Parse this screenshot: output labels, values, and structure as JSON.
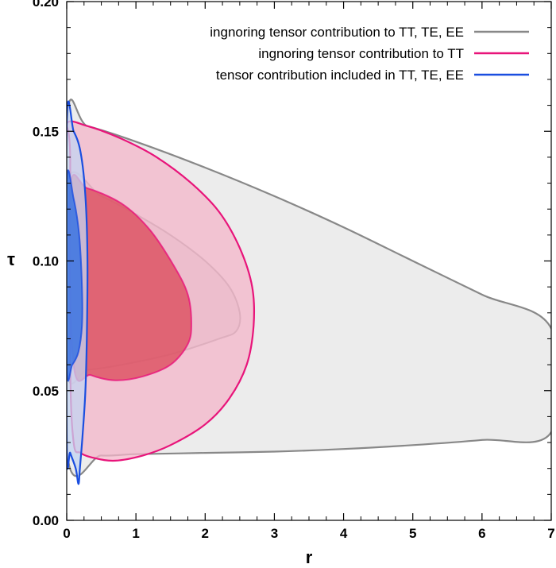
{
  "chart_data": {
    "type": "contour",
    "xlabel": "r",
    "ylabel": "τ",
    "xlim": [
      0,
      7
    ],
    "ylim": [
      0,
      0.2
    ],
    "x_ticks": [
      "0",
      "1",
      "2",
      "3",
      "4",
      "5",
      "6",
      "7"
    ],
    "y_ticks": [
      "0.00",
      "0.05",
      "0.10",
      "0.15",
      "0.20"
    ],
    "legend_position": "top-right",
    "series": [
      {
        "name": "ingnoring tensor contribution to TT, TE, EE",
        "line_color": "#888888",
        "fill_outer": "#e6e6e6",
        "fill_inner": "#d0d0d0",
        "contour_95": [
          [
            0,
            0.153
          ],
          [
            0.3,
            0.152
          ],
          [
            1,
            0.146
          ],
          [
            2,
            0.136
          ],
          [
            3,
            0.125
          ],
          [
            4,
            0.113
          ],
          [
            5,
            0.1
          ],
          [
            6,
            0.087
          ],
          [
            7,
            0.074
          ],
          [
            7,
            0.034
          ],
          [
            6,
            0.031
          ],
          [
            5,
            0.029
          ],
          [
            4,
            0.0275
          ],
          [
            3,
            0.0265
          ],
          [
            2,
            0.026
          ],
          [
            1,
            0.0255
          ],
          [
            0.5,
            0.025
          ],
          [
            0,
            0.027
          ]
        ],
        "contour_68": [
          [
            0,
            0.13
          ],
          [
            0.5,
            0.125
          ],
          [
            1,
            0.118
          ],
          [
            1.5,
            0.11
          ],
          [
            2,
            0.1
          ],
          [
            2.35,
            0.09
          ],
          [
            2.5,
            0.08
          ],
          [
            2.45,
            0.073
          ],
          [
            2.2,
            0.07
          ],
          [
            1.5,
            0.064
          ],
          [
            0.8,
            0.06
          ],
          [
            0.3,
            0.058
          ],
          [
            0,
            0.058
          ]
        ]
      },
      {
        "name": "ingnoring tensor contribution to TT",
        "line_color": "#e8147a",
        "fill_outer": "#f4b6c9",
        "fill_inner": "#dc4e5e",
        "contour_95": [
          [
            0,
            0.153
          ],
          [
            0.3,
            0.152
          ],
          [
            0.8,
            0.147
          ],
          [
            1.3,
            0.14
          ],
          [
            1.8,
            0.13
          ],
          [
            2.2,
            0.119
          ],
          [
            2.5,
            0.105
          ],
          [
            2.68,
            0.09
          ],
          [
            2.7,
            0.075
          ],
          [
            2.6,
            0.06
          ],
          [
            2.35,
            0.047
          ],
          [
            2,
            0.037
          ],
          [
            1.5,
            0.029
          ],
          [
            1.1,
            0.025
          ],
          [
            0.7,
            0.023
          ],
          [
            0.4,
            0.024
          ],
          [
            0.2,
            0.026
          ],
          [
            0.1,
            0.03
          ],
          [
            0.05,
            0.06
          ],
          [
            0.05,
            0.14
          ]
        ],
        "contour_68": [
          [
            0.05,
            0.128
          ],
          [
            0.3,
            0.128
          ],
          [
            0.8,
            0.122
          ],
          [
            1.2,
            0.112
          ],
          [
            1.55,
            0.098
          ],
          [
            1.75,
            0.087
          ],
          [
            1.8,
            0.076
          ],
          [
            1.75,
            0.068
          ],
          [
            1.5,
            0.06
          ],
          [
            1.1,
            0.0555
          ],
          [
            0.7,
            0.054
          ],
          [
            0.35,
            0.056
          ],
          [
            0.1,
            0.06
          ]
        ]
      },
      {
        "name": "tensor contribution included in TT, TE, EE",
        "line_color": "#1a4ee0",
        "fill_outer": "#c3d4f1",
        "fill_inner": "#2f6fe3",
        "contour_95": [
          [
            0,
            0.153
          ],
          [
            0.1,
            0.15
          ],
          [
            0.2,
            0.142
          ],
          [
            0.27,
            0.125
          ],
          [
            0.3,
            0.1
          ],
          [
            0.29,
            0.07
          ],
          [
            0.27,
            0.05
          ],
          [
            0.23,
            0.033
          ],
          [
            0.19,
            0.02
          ],
          [
            0.17,
            0.014
          ],
          [
            0.13,
            0.02
          ],
          [
            0.05,
            0.026
          ],
          [
            0,
            0.03
          ]
        ],
        "contour_68": [
          [
            0,
            0.131
          ],
          [
            0.1,
            0.124
          ],
          [
            0.18,
            0.11
          ],
          [
            0.22,
            0.09
          ],
          [
            0.22,
            0.075
          ],
          [
            0.17,
            0.065
          ],
          [
            0.08,
            0.06
          ],
          [
            0,
            0.059
          ]
        ]
      }
    ]
  }
}
